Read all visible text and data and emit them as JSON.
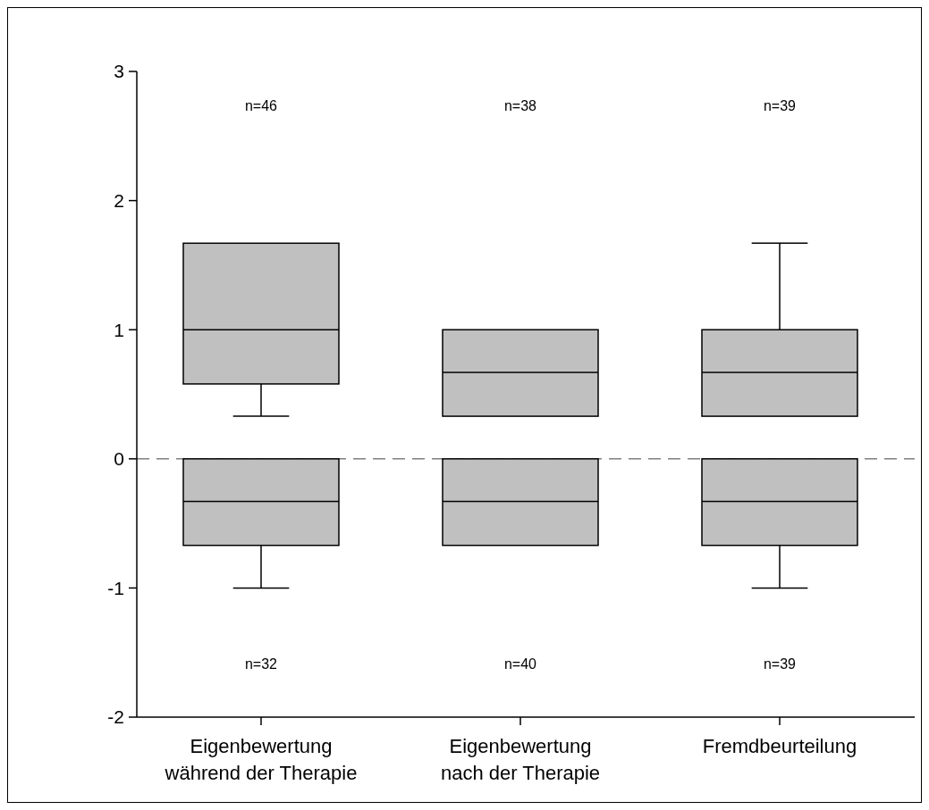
{
  "chart_data": {
    "type": "box",
    "categories": [
      "Eigenbewertung während der Therapie",
      "Eigenbewertung nach der Therapie",
      "Fremdbeurteilung"
    ],
    "series": [
      {
        "color": "#c0c0c0",
        "boxes": [
          {
            "low": 0.33,
            "q1": 0.58,
            "median": 1,
            "q3": 1.67,
            "high": 1.67
          },
          {
            "low": 0.33,
            "q1": 0.33,
            "median": 0.67,
            "q3": 1,
            "high": 1
          },
          {
            "low": 0.33,
            "q1": 0.33,
            "median": 0.67,
            "q3": 1,
            "high": 1.67
          }
        ]
      },
      {
        "color": "#c0c0c0",
        "boxes": [
          {
            "low": -1,
            "q1": -0.67,
            "median": -0.33,
            "q3": 0,
            "high": 0
          },
          {
            "low": -0.67,
            "q1": -0.67,
            "median": -0.33,
            "q3": 0,
            "high": 0
          },
          {
            "low": -1,
            "q1": -0.67,
            "median": -0.33,
            "q3": 0,
            "high": 0
          }
        ]
      }
    ],
    "ylim": [
      -2,
      3
    ],
    "yticks": [
      -2,
      -1,
      0,
      1,
      2,
      3
    ],
    "grid": false,
    "ref_lines": [
      {
        "axis": "y",
        "value": 0,
        "color": "#808080",
        "line_style": "dashed"
      }
    ],
    "annotations": [
      "n=46",
      "n=38",
      "n=39",
      "n=32",
      "n=40",
      "n=39"
    ]
  }
}
